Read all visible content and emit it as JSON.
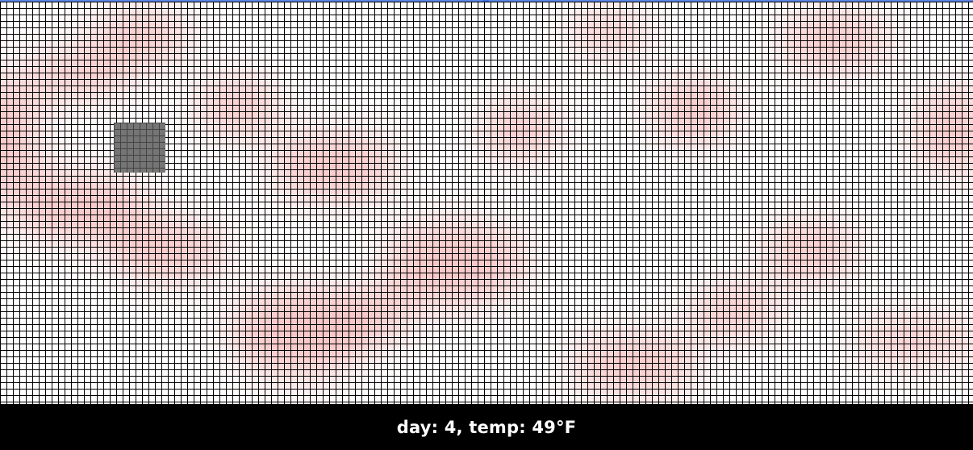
{
  "status": {
    "day": "4",
    "temp": "49°F",
    "text": "day: 4, temp: 49°F"
  },
  "colors": {
    "grid_line": "#000000",
    "heat": "#ec6e6e",
    "obstacle": "#757575",
    "status_bg": "#000000",
    "status_fg": "#ffffff",
    "top_bar": "#5b86e5"
  }
}
